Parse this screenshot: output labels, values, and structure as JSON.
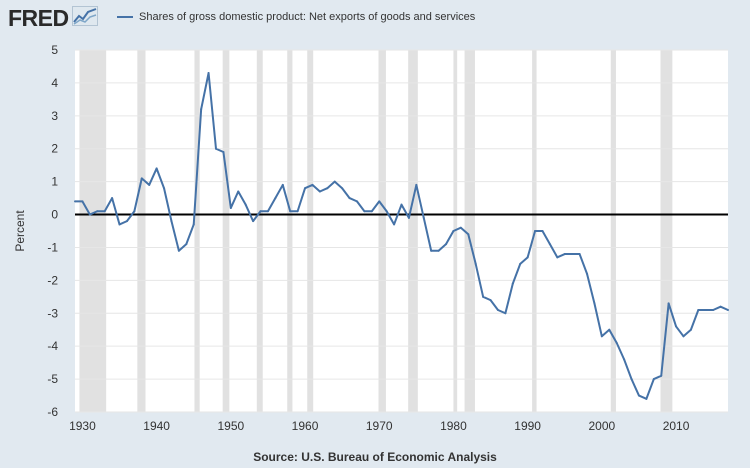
{
  "logo": {
    "text": "FRED",
    "icon": "line-chart-icon"
  },
  "source": "Source: U.S. Bureau of Economic Analysis",
  "colors": {
    "page_bg": "#e1e9f0",
    "plot_bg": "#ffffff",
    "series": "#4572a7",
    "recession": "#e1e1e1",
    "zero_line": "#000000"
  },
  "chart_data": {
    "type": "line",
    "xlabel": "",
    "ylabel": "Percent",
    "xlim": [
      1929,
      2017
    ],
    "ylim": [
      -6,
      5
    ],
    "x_ticks": [
      1930,
      1940,
      1950,
      1960,
      1970,
      1980,
      1990,
      2000,
      2010
    ],
    "y_ticks": [
      -6,
      -5,
      -4,
      -3,
      -2,
      -1,
      0,
      1,
      2,
      3,
      4,
      5
    ],
    "grid": "horizontal",
    "legend": "top-left",
    "recession_periods": [
      [
        1929.6,
        1933.2
      ],
      [
        1937.4,
        1938.5
      ],
      [
        1945.1,
        1945.8
      ],
      [
        1948.9,
        1949.8
      ],
      [
        1953.5,
        1954.3
      ],
      [
        1957.6,
        1958.3
      ],
      [
        1960.3,
        1961.1
      ],
      [
        1969.9,
        1970.9
      ],
      [
        1973.9,
        1975.2
      ],
      [
        1980.0,
        1980.5
      ],
      [
        1981.5,
        1982.9
      ],
      [
        1990.6,
        1991.2
      ],
      [
        2001.2,
        2001.9
      ],
      [
        2007.9,
        2009.5
      ]
    ],
    "series": [
      {
        "name": "Shares of gross domestic product: Net exports of goods and services",
        "color": "#4572a7",
        "x": [
          1929,
          1930,
          1931,
          1932,
          1933,
          1934,
          1935,
          1936,
          1937,
          1938,
          1939,
          1940,
          1941,
          1942,
          1943,
          1944,
          1945,
          1946,
          1947,
          1948,
          1949,
          1950,
          1951,
          1952,
          1953,
          1954,
          1955,
          1956,
          1957,
          1958,
          1959,
          1960,
          1961,
          1962,
          1963,
          1964,
          1965,
          1966,
          1967,
          1968,
          1969,
          1970,
          1971,
          1972,
          1973,
          1974,
          1975,
          1976,
          1977,
          1978,
          1979,
          1980,
          1981,
          1982,
          1983,
          1984,
          1985,
          1986,
          1987,
          1988,
          1989,
          1990,
          1991,
          1992,
          1993,
          1994,
          1995,
          1996,
          1997,
          1998,
          1999,
          2000,
          2001,
          2002,
          2003,
          2004,
          2005,
          2006,
          2007,
          2008,
          2009,
          2010,
          2011,
          2012,
          2013,
          2014,
          2015,
          2016,
          2017
        ],
        "y": [
          0.4,
          0.4,
          0.0,
          0.1,
          0.1,
          0.5,
          -0.3,
          -0.2,
          0.1,
          1.1,
          0.9,
          1.4,
          0.8,
          -0.2,
          -1.1,
          -0.9,
          -0.3,
          3.2,
          4.3,
          2.0,
          1.9,
          0.2,
          0.7,
          0.3,
          -0.2,
          0.1,
          0.1,
          0.5,
          0.9,
          0.1,
          0.1,
          0.8,
          0.9,
          0.7,
          0.8,
          1.0,
          0.8,
          0.5,
          0.4,
          0.1,
          0.1,
          0.4,
          0.1,
          -0.3,
          0.3,
          -0.1,
          0.9,
          -0.1,
          -1.1,
          -1.1,
          -0.9,
          -0.5,
          -0.4,
          -0.6,
          -1.5,
          -2.5,
          -2.6,
          -2.9,
          -3.0,
          -2.1,
          -1.5,
          -1.3,
          -0.5,
          -0.5,
          -0.9,
          -1.3,
          -1.2,
          -1.2,
          -1.2,
          -1.8,
          -2.7,
          -3.7,
          -3.5,
          -3.9,
          -4.4,
          -5.0,
          -5.5,
          -5.6,
          -5.0,
          -4.9,
          -2.7,
          -3.4,
          -3.7,
          -3.5,
          -2.9,
          -2.9,
          -2.9,
          -2.8,
          -2.9
        ]
      }
    ]
  }
}
